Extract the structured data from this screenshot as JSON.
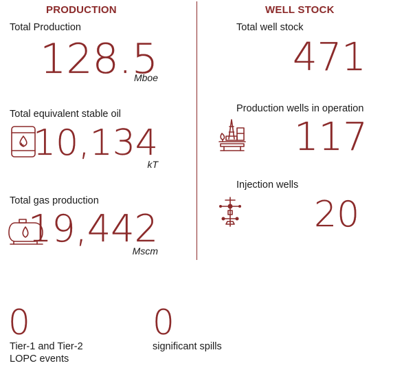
{
  "production": {
    "heading": "PRODUCTION",
    "total": {
      "label": "Total Production",
      "value": "128.5",
      "unit": "Mboe"
    },
    "oil": {
      "label": "Total equivalent stable oil",
      "value": "10,134",
      "unit": "kT",
      "icon": "oil-barrel-icon"
    },
    "gas": {
      "label": "Total gas production",
      "value": "19,442",
      "unit": "Mscm",
      "icon": "gas-tank-icon"
    }
  },
  "well_stock": {
    "heading": "WELL STOCK",
    "total": {
      "label": "Total well stock",
      "value": "471"
    },
    "operating": {
      "label": "Production wells in operation",
      "value": "117",
      "icon": "drilling-rig-icon"
    },
    "injection": {
      "label": "Injection wells",
      "value": "20",
      "icon": "wellhead-icon"
    }
  },
  "safety": {
    "lopc": {
      "value": "0",
      "label_line1": "Tier-1 and Tier-2",
      "label_line2": "LOPC events"
    },
    "spills": {
      "value": "0",
      "label": "significant spills"
    }
  },
  "colors": {
    "accent": "#8b2a2a",
    "text": "#1a1a1a"
  }
}
